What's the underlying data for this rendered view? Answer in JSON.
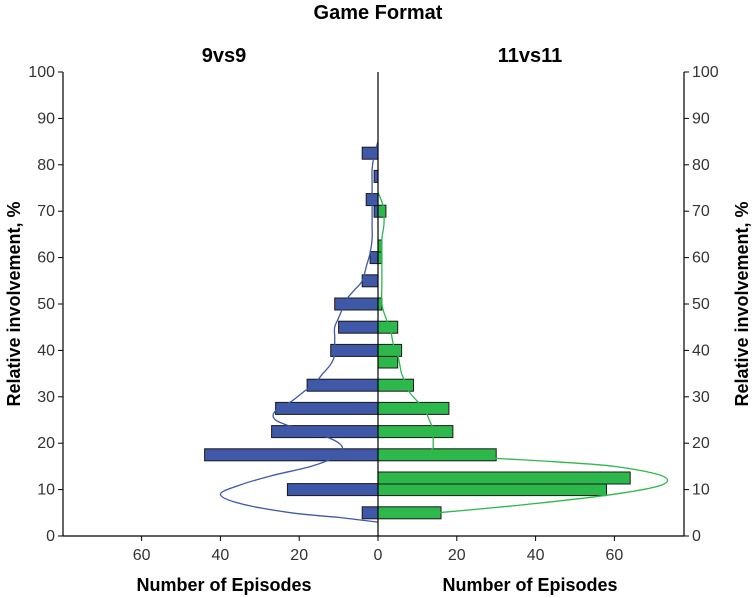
{
  "chart_data": {
    "type": "bar",
    "title": "Game Format",
    "ylabel": "Relative involvement, %",
    "ylim": [
      0,
      100
    ],
    "yticks": [
      0,
      10,
      20,
      30,
      40,
      50,
      60,
      70,
      80,
      90,
      100
    ],
    "xticks_left": [
      60,
      40,
      20,
      0
    ],
    "xticks_right": [
      20,
      40,
      60
    ],
    "panels": [
      {
        "name": "9vs9",
        "xlabel": "Number of Episodes",
        "color": "#3f58a8",
        "bars": [
          {
            "y": 5,
            "value": 4
          },
          {
            "y": 10,
            "value": 23
          },
          {
            "y": 17.5,
            "value": 44
          },
          {
            "y": 22.5,
            "value": 27
          },
          {
            "y": 27.5,
            "value": 26
          },
          {
            "y": 32.5,
            "value": 18
          },
          {
            "y": 40,
            "value": 12
          },
          {
            "y": 45,
            "value": 10
          },
          {
            "y": 50,
            "value": 11
          },
          {
            "y": 55,
            "value": 4
          },
          {
            "y": 60,
            "value": 2
          },
          {
            "y": 70,
            "value": 1
          },
          {
            "y": 72.5,
            "value": 3
          },
          {
            "y": 77.5,
            "value": 1
          },
          {
            "y": 82.5,
            "value": 4
          }
        ],
        "curve": [
          [
            3,
            0
          ],
          [
            4,
            10
          ],
          [
            5,
            22
          ],
          [
            7,
            35
          ],
          [
            9,
            40
          ],
          [
            11,
            35
          ],
          [
            13,
            27
          ],
          [
            15,
            17
          ],
          [
            17,
            11
          ],
          [
            19,
            9
          ],
          [
            21,
            12
          ],
          [
            23,
            20
          ],
          [
            25,
            26
          ],
          [
            27,
            26
          ],
          [
            29,
            22
          ],
          [
            31,
            19
          ],
          [
            33,
            16
          ],
          [
            35,
            14
          ],
          [
            37,
            12
          ],
          [
            39,
            11
          ],
          [
            41,
            11
          ],
          [
            43,
            11
          ],
          [
            45,
            11
          ],
          [
            47,
            10
          ],
          [
            49,
            9
          ],
          [
            51,
            8
          ],
          [
            53,
            6
          ],
          [
            55,
            4
          ],
          [
            58,
            3
          ],
          [
            61,
            2
          ],
          [
            64,
            1.5
          ],
          [
            67,
            1.5
          ],
          [
            70,
            1.5
          ],
          [
            73,
            1.5
          ],
          [
            76,
            1.5
          ],
          [
            79,
            1.5
          ],
          [
            82,
            1
          ],
          [
            85,
            0
          ]
        ]
      },
      {
        "name": "11vs11",
        "xlabel": "Number of Episodes",
        "color": "#2db84c",
        "bars": [
          {
            "y": 5,
            "value": 16
          },
          {
            "y": 10,
            "value": 58
          },
          {
            "y": 12.5,
            "value": 64
          },
          {
            "y": 17.5,
            "value": 30
          },
          {
            "y": 22.5,
            "value": 19
          },
          {
            "y": 27.5,
            "value": 18
          },
          {
            "y": 32.5,
            "value": 9
          },
          {
            "y": 37.5,
            "value": 5
          },
          {
            "y": 40,
            "value": 6
          },
          {
            "y": 45,
            "value": 5
          },
          {
            "y": 50,
            "value": 1
          },
          {
            "y": 60,
            "value": 1
          },
          {
            "y": 62.5,
            "value": 1
          },
          {
            "y": 70,
            "value": 2
          }
        ],
        "curve": [
          [
            4,
            0
          ],
          [
            5,
            15
          ],
          [
            7,
            40
          ],
          [
            9,
            60
          ],
          [
            11,
            72
          ],
          [
            13,
            72
          ],
          [
            15,
            60
          ],
          [
            16,
            45
          ],
          [
            17,
            25
          ],
          [
            18,
            14
          ],
          [
            19,
            14
          ],
          [
            21,
            14
          ],
          [
            23,
            14
          ],
          [
            25,
            13
          ],
          [
            27,
            12
          ],
          [
            29,
            10
          ],
          [
            31,
            8
          ],
          [
            33,
            7
          ],
          [
            35,
            6
          ],
          [
            37,
            5.5
          ],
          [
            39,
            5
          ],
          [
            41,
            4
          ],
          [
            43,
            3.5
          ],
          [
            45,
            3
          ],
          [
            47,
            2
          ],
          [
            50,
            1
          ],
          [
            55,
            1
          ],
          [
            60,
            1
          ],
          [
            64,
            1
          ],
          [
            67,
            1.5
          ],
          [
            70,
            1.5
          ],
          [
            72,
            1
          ],
          [
            74,
            0
          ]
        ]
      }
    ]
  }
}
